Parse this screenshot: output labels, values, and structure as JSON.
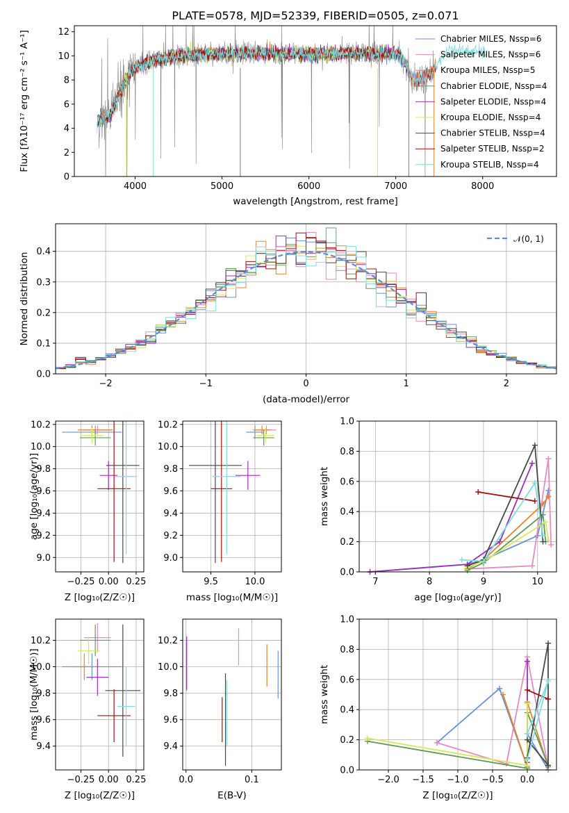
{
  "chart_data": [
    {
      "type": "line",
      "title": "PLATE=0578, MJD=52339, FIBERID=0505, z=0.071",
      "xlabel": "wavelength [Angstrom, rest frame]",
      "ylabel": "Flux [fλ10⁻¹⁷ erg cm⁻² s⁻¹ A⁻¹]",
      "xlim": [
        3300,
        8850
      ],
      "ylim": [
        0,
        12.5
      ],
      "xticks": [
        "4000",
        "5000",
        "6000",
        "7000",
        "8000"
      ],
      "yticks": [
        "0",
        "2",
        "4",
        "6",
        "8",
        "10",
        "12"
      ],
      "legend_position": "top-right",
      "series": [
        {
          "name": "Chabrier MILES, N_SSP=6",
          "color": "#6a8fd6"
        },
        {
          "name": "Salpeter MILES, N_SSP=6",
          "color": "#e48ac4"
        },
        {
          "name": "Kroupa MILES, N_SSP=5",
          "color": "#e8822a"
        },
        {
          "name": "Chabrier ELODIE, N_SSP=4",
          "color": "#5e9a52"
        },
        {
          "name": "Salpeter ELODIE, N_SSP=4",
          "color": "#9b2fb6"
        },
        {
          "name": "Kroupa ELODIE, N_SSP=4",
          "color": "#d6e85a"
        },
        {
          "name": "Chabrier STELIB, N_SSP=4",
          "color": "#474747"
        },
        {
          "name": "Salpeter STELIB, N_SSP=2",
          "color": "#a50d0d"
        },
        {
          "name": "Kroupa STELIB, N_SSP=4",
          "color": "#7fdcde"
        }
      ],
      "data_color": "#808080",
      "continuum": {
        "x": [
          3550,
          3700,
          3900,
          4000,
          4200,
          4500,
          5000,
          5500,
          6000,
          6500,
          7000,
          7100,
          7200,
          7400,
          7600,
          8000,
          8500,
          8800
        ],
        "y": [
          4.5,
          5.0,
          8.0,
          9.0,
          9.6,
          10.0,
          10.2,
          10.2,
          10.1,
          10.2,
          10.2,
          9.5,
          8.0,
          8.5,
          10.5,
          10.3,
          10.3,
          10.4
        ]
      }
    },
    {
      "type": "histogram",
      "xlabel": "(data-model)/error",
      "ylabel": "Normed distribution",
      "xlim": [
        -2.5,
        2.5
      ],
      "ylim": [
        0,
        0.49
      ],
      "xticks": [
        "−2",
        "−1",
        "0",
        "1",
        "2"
      ],
      "yticks": [
        "0.0",
        "0.1",
        "0.2",
        "0.3",
        "0.4"
      ],
      "legend": "𝒩(0, 1)",
      "legend_color": "#5a8fd4",
      "bin_width": 0.1,
      "reference_curve": "gaussian(0,1)"
    },
    {
      "type": "scatter",
      "panel": "age-vs-Z",
      "xlabel": "Z [log₁₀(Z/Z☉)]",
      "ylabel": "age  [log₁₀(age/yr)]",
      "xlim": [
        -0.48,
        0.32
      ],
      "ylim": [
        8.87,
        10.23
      ],
      "xticks": [
        -0.25,
        0.0,
        0.25
      ],
      "yticks": [
        9.0,
        9.2,
        9.4,
        9.6,
        9.8,
        10.0,
        10.2
      ],
      "points": [
        {
          "x": -0.15,
          "y": 10.13,
          "xerr": 0.27,
          "yerr": 0.06,
          "color": "#6a8fd6"
        },
        {
          "x": -0.1,
          "y": 10.15,
          "xerr": 0.13,
          "yerr": 0.04,
          "color": "#e48ac4"
        },
        {
          "x": -0.12,
          "y": 10.15,
          "xerr": 0.16,
          "yerr": 0.04,
          "color": "#e8822a"
        },
        {
          "x": -0.12,
          "y": 10.08,
          "xerr": 0.14,
          "yerr": 0.07,
          "color": "#5e9a52"
        },
        {
          "x": 0.0,
          "y": 9.74,
          "xerr": 0.08,
          "yerr": 0.13,
          "color": "#9b2fb6"
        },
        {
          "x": -0.15,
          "y": 10.1,
          "xerr": 0.1,
          "yerr": 0.07,
          "color": "#d6e85a"
        },
        {
          "x": 0.13,
          "y": 9.83,
          "xerr": 0.15,
          "yerr": 0.88,
          "color": "#474747"
        },
        {
          "x": 0.05,
          "y": 9.62,
          "xerr": 0.15,
          "yerr": 0.66,
          "color": "#a50d0d"
        },
        {
          "x": 0.16,
          "y": 9.73,
          "xerr": 0.1,
          "yerr": 0.7,
          "color": "#7fdcde"
        }
      ]
    },
    {
      "type": "scatter",
      "panel": "age-vs-mass",
      "xlabel": "mass [log₁₀(M/M☉)]",
      "xlim": [
        9.18,
        10.3
      ],
      "ylim": [
        8.87,
        10.23
      ],
      "xticks": [
        9.5,
        10.0
      ],
      "yticks": [
        9.0,
        9.2,
        9.4,
        9.6,
        9.8,
        10.0,
        10.2
      ],
      "points": [
        {
          "x": 10.0,
          "y": 10.13,
          "xerr": 0.1,
          "yerr": 0.06,
          "color": "#6a8fd6"
        },
        {
          "x": 10.13,
          "y": 10.15,
          "xerr": 0.11,
          "yerr": 0.04,
          "color": "#e48ac4"
        },
        {
          "x": 10.08,
          "y": 10.15,
          "xerr": 0.1,
          "yerr": 0.04,
          "color": "#e8822a"
        },
        {
          "x": 10.1,
          "y": 10.08,
          "xerr": 0.12,
          "yerr": 0.07,
          "color": "#5e9a52"
        },
        {
          "x": 9.92,
          "y": 9.74,
          "xerr": 0.14,
          "yerr": 0.13,
          "color": "#9b2fb6"
        },
        {
          "x": 10.12,
          "y": 10.1,
          "xerr": 0.1,
          "yerr": 0.07,
          "color": "#d6e85a"
        },
        {
          "x": 9.55,
          "y": 9.83,
          "xerr": 0.3,
          "yerr": 0.88,
          "color": "#474747"
        },
        {
          "x": 9.62,
          "y": 9.62,
          "xerr": 0.12,
          "yerr": 0.66,
          "color": "#a50d0d"
        },
        {
          "x": 9.68,
          "y": 9.73,
          "xerr": 0.16,
          "yerr": 0.7,
          "color": "#7fdcde"
        }
      ]
    },
    {
      "type": "line",
      "panel": "mass-weight-vs-age",
      "xlabel": "age  [log₁₀(age/yr)]",
      "ylabel": "mass weight",
      "xlim": [
        6.7,
        10.35
      ],
      "ylim": [
        0,
        1.0
      ],
      "xticks": [
        7,
        8,
        9,
        10
      ],
      "yticks": [
        0.0,
        0.2,
        0.4,
        0.6,
        0.8,
        1.0
      ],
      "series": [
        {
          "color": "#6a8fd6",
          "x": [
            6.9,
            8.7,
            9.0,
            10.0,
            10.2
          ],
          "y": [
            0.0,
            0.05,
            0.08,
            0.24,
            0.54
          ]
        },
        {
          "color": "#e48ac4",
          "x": [
            8.7,
            9.9,
            10.2,
            10.25
          ],
          "y": [
            0.02,
            0.04,
            0.75,
            0.18
          ]
        },
        {
          "color": "#e8822a",
          "x": [
            8.7,
            9.0,
            10.1,
            10.2
          ],
          "y": [
            0.02,
            0.08,
            0.45,
            0.5
          ]
        },
        {
          "color": "#5e9a52",
          "x": [
            8.7,
            9.0,
            10.1,
            10.15
          ],
          "y": [
            0.01,
            0.06,
            0.38,
            0.2
          ]
        },
        {
          "color": "#9b2fb6",
          "x": [
            6.9,
            8.7,
            9.3,
            9.9
          ],
          "y": [
            0.0,
            0.05,
            0.2,
            0.72
          ]
        },
        {
          "color": "#d6e85a",
          "x": [
            8.7,
            9.0,
            10.15,
            10.2
          ],
          "y": [
            0.03,
            0.07,
            0.33,
            0.21
          ]
        },
        {
          "color": "#474747",
          "x": [
            8.7,
            9.0,
            9.95,
            10.1
          ],
          "y": [
            0.04,
            0.08,
            0.84,
            0.2
          ]
        },
        {
          "color": "#a50d0d",
          "x": [
            8.9,
            9.95
          ],
          "y": [
            0.53,
            0.47
          ]
        },
        {
          "color": "#7fdcde",
          "x": [
            8.6,
            9.0,
            9.95,
            10.1
          ],
          "y": [
            0.08,
            0.07,
            0.59,
            0.24
          ]
        }
      ]
    },
    {
      "type": "scatter",
      "panel": "mass-vs-Z",
      "xlabel": "Z [log₁₀(Z/Z☉)]",
      "ylabel": "mass [log₁₀(M/M☉)]",
      "xlim": [
        -0.48,
        0.32
      ],
      "ylim": [
        9.22,
        10.36
      ],
      "xticks": [
        -0.25,
        0.0,
        0.25
      ],
      "yticks": [
        9.4,
        9.6,
        9.8,
        10.0,
        10.2
      ],
      "points": [
        {
          "x": -0.15,
          "y": 10.0,
          "xerr": 0.27,
          "yerr": 0.1,
          "color": "#6a8fd6"
        },
        {
          "x": -0.1,
          "y": 10.22,
          "xerr": 0.12,
          "yerr": 0.11,
          "color": "#e48ac4"
        },
        {
          "x": -0.22,
          "y": 10.0,
          "xerr": 0.1,
          "yerr": 0.1,
          "color": "#e8822a"
        },
        {
          "x": -0.12,
          "y": 10.2,
          "xerr": 0.14,
          "yerr": 0.12,
          "color": "#5e9a52"
        },
        {
          "x": -0.1,
          "y": 9.92,
          "xerr": 0.1,
          "yerr": 0.14,
          "color": "#9b2fb6"
        },
        {
          "x": -0.18,
          "y": 10.12,
          "xerr": 0.1,
          "yerr": 0.1,
          "color": "#d6e85a"
        },
        {
          "x": 0.13,
          "y": 9.82,
          "xerr": 0.16,
          "yerr": 0.5,
          "color": "#474747"
        },
        {
          "x": 0.05,
          "y": 9.63,
          "xerr": 0.15,
          "yerr": 0.2,
          "color": "#a50d0d"
        },
        {
          "x": 0.16,
          "y": 9.7,
          "xerr": 0.08,
          "yerr": 0.3,
          "color": "#7fdcde"
        }
      ]
    },
    {
      "type": "scatter",
      "panel": "mass-vs-EBV",
      "xlabel": "E(B-V)",
      "xlim": [
        -0.005,
        0.145
      ],
      "ylim": [
        9.22,
        10.36
      ],
      "xticks": [
        0.0,
        0.1
      ],
      "yticks": [
        9.4,
        9.6,
        9.8,
        10.0,
        10.2
      ],
      "points": [
        {
          "x": 0.14,
          "y": 9.94,
          "yerr": 0.18,
          "color": "#6a8fd6"
        },
        {
          "x": 0.08,
          "y": 10.15,
          "yerr": 0.14,
          "color": "#e48ac4"
        },
        {
          "x": 0.123,
          "y": 10.01,
          "yerr": 0.16,
          "color": "#e8822a"
        },
        {
          "x": 0.001,
          "y": 10.0,
          "yerr": 0.18,
          "color": "#5e9a52"
        },
        {
          "x": 0.001,
          "y": 10.03,
          "yerr": 0.2,
          "color": "#9b2fb6"
        },
        {
          "x": 0.002,
          "y": 10.0,
          "yerr": 0.15,
          "color": "#d6e85a"
        },
        {
          "x": 0.06,
          "y": 9.6,
          "yerr": 0.35,
          "color": "#474747"
        },
        {
          "x": 0.055,
          "y": 9.6,
          "yerr": 0.17,
          "color": "#a50d0d"
        },
        {
          "x": 0.062,
          "y": 9.65,
          "yerr": 0.25,
          "color": "#7fdcde"
        }
      ]
    },
    {
      "type": "line",
      "panel": "mass-weight-vs-Z",
      "xlabel": "Z [log₁₀(Z/Z☉)]",
      "ylabel": "mass weight",
      "xlim": [
        -2.42,
        0.42
      ],
      "ylim": [
        0,
        1.0
      ],
      "xticks": [
        -2.0,
        -1.5,
        -1.0,
        -0.5,
        0.0
      ],
      "yticks": [
        0.0,
        0.2,
        0.4,
        0.6,
        0.8,
        1.0
      ],
      "series": [
        {
          "color": "#6a8fd6",
          "x": [
            -1.3,
            -0.4,
            0.0,
            0.0,
            0.3
          ],
          "y": [
            0.18,
            0.54,
            0.02,
            0.24,
            0.0
          ]
        },
        {
          "color": "#e48ac4",
          "x": [
            -1.3,
            -0.3,
            0.0,
            0.3
          ],
          "y": [
            0.18,
            0.04,
            0.75,
            0.02
          ]
        },
        {
          "color": "#e8822a",
          "x": [
            -0.35,
            0.0,
            0.0,
            0.3
          ],
          "y": [
            0.5,
            0.02,
            0.45,
            0.02
          ]
        },
        {
          "color": "#5e9a52",
          "x": [
            -2.3,
            0.0,
            0.0,
            0.3
          ],
          "y": [
            0.19,
            0.01,
            0.38,
            0.03
          ]
        },
        {
          "color": "#9b2fb6",
          "x": [
            0.0,
            0.0,
            0.0
          ],
          "y": [
            0.72,
            0.05,
            0.2
          ]
        },
        {
          "color": "#d6e85a",
          "x": [
            -2.3,
            0.0,
            0.0
          ],
          "y": [
            0.21,
            0.03,
            0.44
          ]
        },
        {
          "color": "#474747",
          "x": [
            0.0,
            0.3,
            0.3,
            0.0
          ],
          "y": [
            0.08,
            0.84,
            0.03,
            0.2
          ]
        },
        {
          "color": "#a50d0d",
          "x": [
            0.0,
            0.3
          ],
          "y": [
            0.53,
            0.47
          ]
        },
        {
          "color": "#7fdcde",
          "x": [
            0.0,
            0.3,
            0.0
          ],
          "y": [
            0.07,
            0.59,
            0.24
          ]
        }
      ]
    }
  ]
}
